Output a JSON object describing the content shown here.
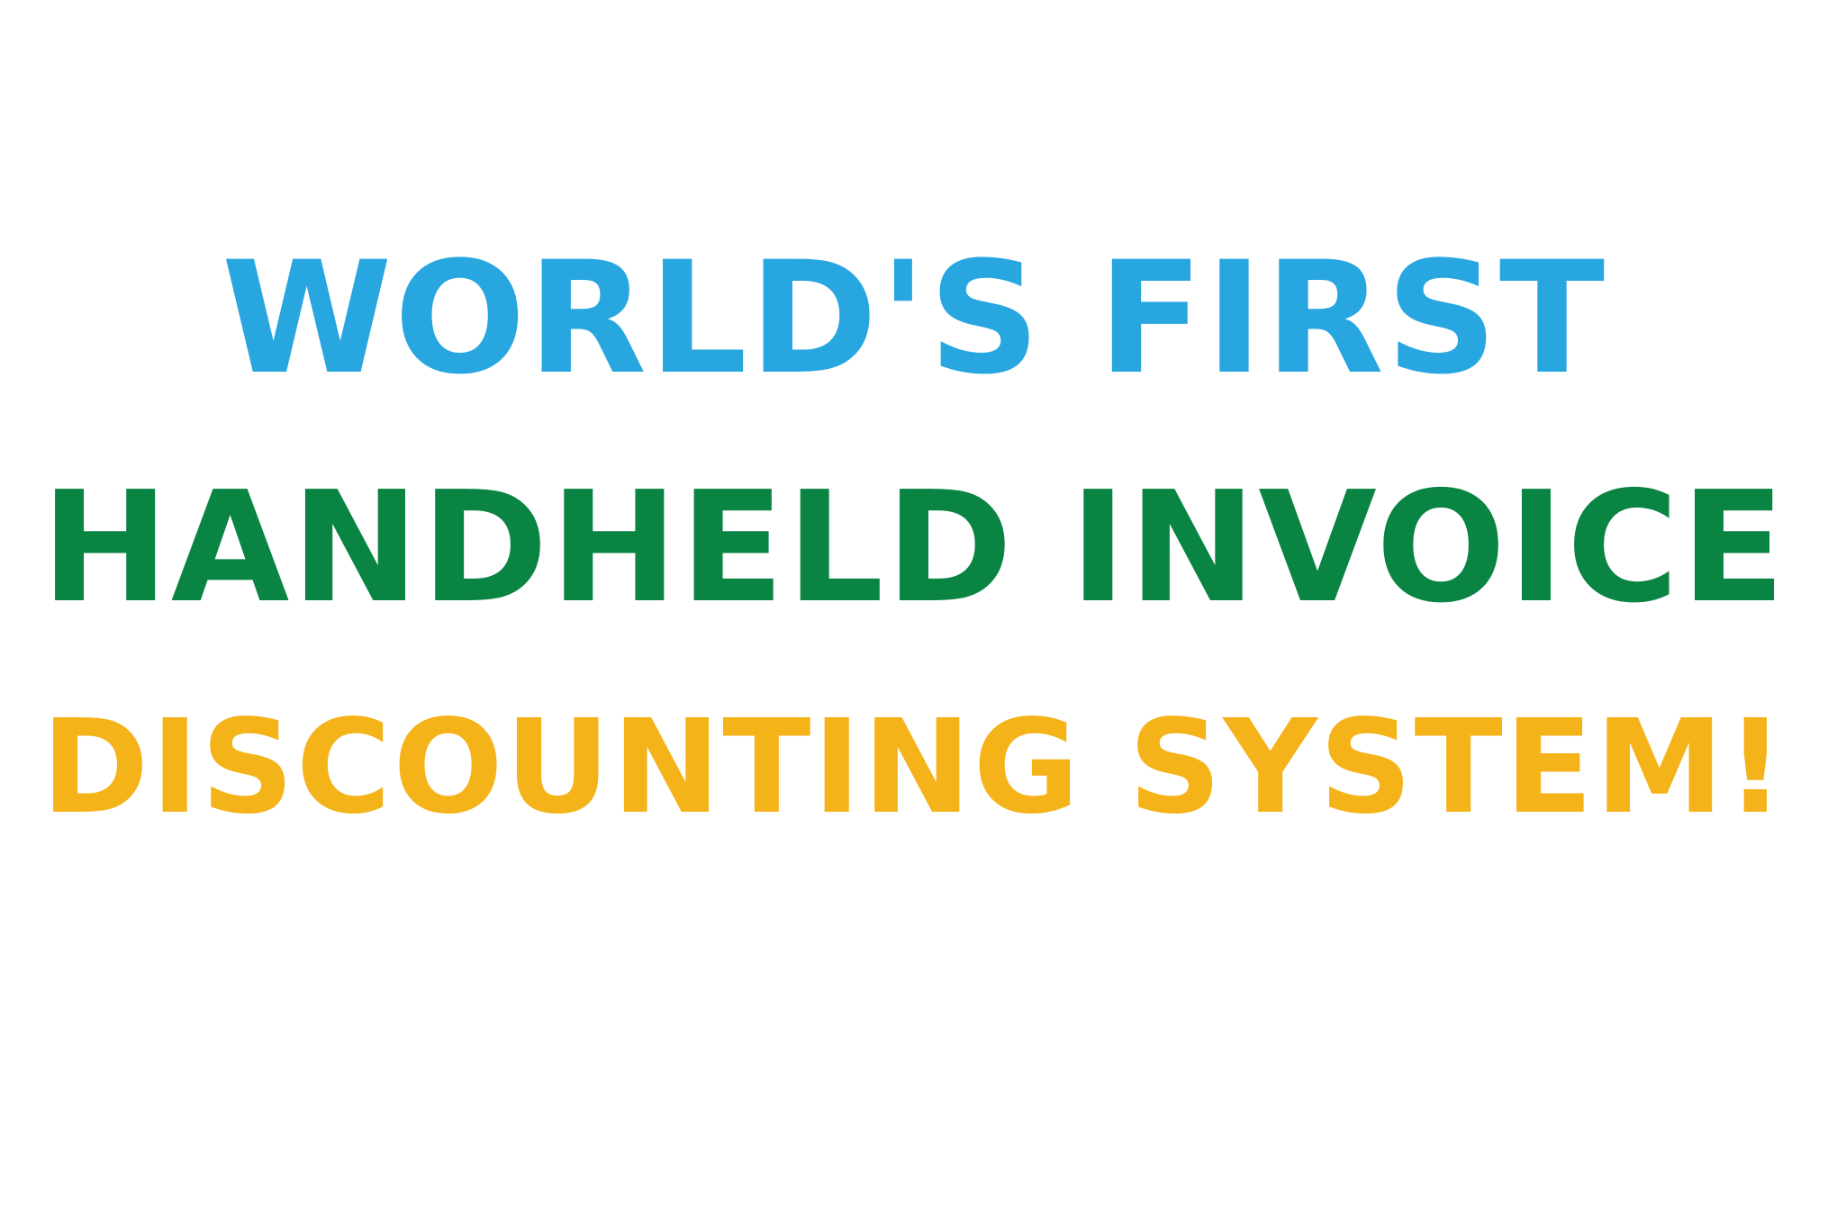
{
  "headline": {
    "lines": [
      {
        "text": "WORLD'S FIRST",
        "color": "#27a6e0"
      },
      {
        "text": "HANDHELD INVOICE",
        "color": "#098443"
      },
      {
        "text": "DISCOUNTING SYSTEM!",
        "color": "#f5b31a"
      }
    ]
  }
}
